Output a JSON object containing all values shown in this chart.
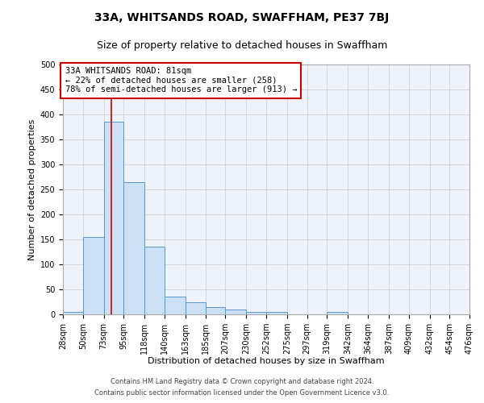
{
  "title_line1": "33A, WHITSANDS ROAD, SWAFFHAM, PE37 7BJ",
  "title_line2": "Size of property relative to detached houses in Swaffham",
  "xlabel": "Distribution of detached houses by size in Swaffham",
  "ylabel": "Number of detached properties",
  "bin_edges": [
    28,
    50,
    73,
    95,
    118,
    140,
    163,
    185,
    207,
    230,
    252,
    275,
    297,
    319,
    342,
    364,
    387,
    409,
    432,
    454,
    476
  ],
  "bar_heights": [
    5,
    155,
    385,
    265,
    135,
    35,
    25,
    15,
    10,
    5,
    5,
    0,
    0,
    5,
    0,
    0,
    0,
    0,
    0,
    0
  ],
  "bar_color": "#cce0f5",
  "bar_edgecolor": "#5599cc",
  "grid_color": "#cccccc",
  "bg_color": "#eef3fb",
  "property_line_x": 81,
  "property_line_color": "#cc0000",
  "annotation_text": "33A WHITSANDS ROAD: 81sqm\n← 22% of detached houses are smaller (258)\n78% of semi-detached houses are larger (913) →",
  "annotation_box_color": "#ffffff",
  "annotation_box_edgecolor": "#cc0000",
  "ylim": [
    0,
    500
  ],
  "yticks": [
    0,
    50,
    100,
    150,
    200,
    250,
    300,
    350,
    400,
    450,
    500
  ],
  "footer_line1": "Contains HM Land Registry data © Crown copyright and database right 2024.",
  "footer_line2": "Contains public sector information licensed under the Open Government Licence v3.0.",
  "title_fontsize": 10,
  "subtitle_fontsize": 9,
  "xlabel_fontsize": 8,
  "ylabel_fontsize": 8,
  "tick_fontsize": 7,
  "annotation_fontsize": 7.5,
  "footer_fontsize": 6
}
